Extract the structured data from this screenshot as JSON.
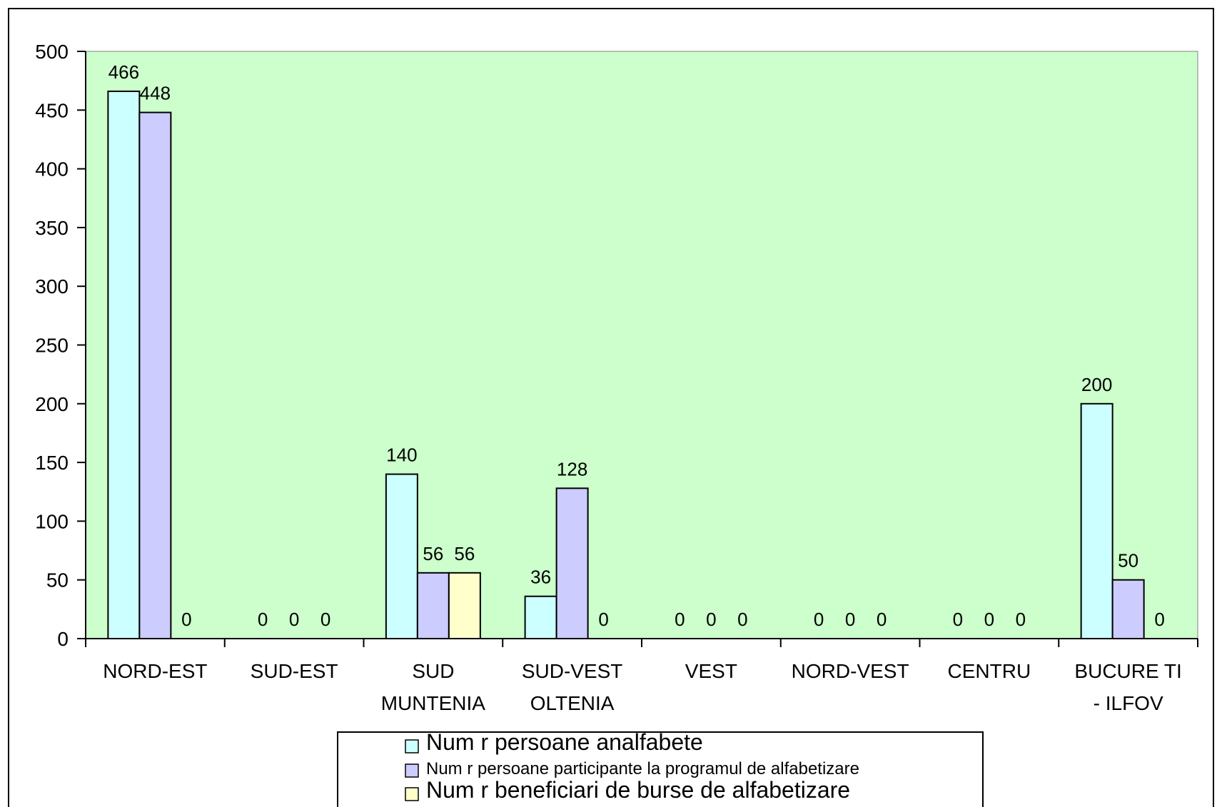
{
  "chart_data": {
    "type": "bar",
    "title": "",
    "xlabel": "",
    "ylabel": "",
    "ylim": [
      0,
      500
    ],
    "yticks": [
      0,
      50,
      100,
      150,
      200,
      250,
      300,
      350,
      400,
      450,
      500
    ],
    "grid": false,
    "legend_position": "bottom",
    "plot_background": "#ccffcc",
    "categories": [
      [
        "NORD-EST"
      ],
      [
        "SUD-EST"
      ],
      [
        "SUD",
        "MUNTENIA"
      ],
      [
        "SUD-VEST",
        "OLTENIA"
      ],
      [
        "VEST"
      ],
      [
        "NORD-VEST"
      ],
      [
        "CENTRU"
      ],
      [
        "BUCURE TI",
        "- ILFOV"
      ]
    ],
    "series": [
      {
        "name": "Num r persoane analfabete",
        "color": "#ccffff",
        "values": [
          466,
          0,
          140,
          36,
          0,
          0,
          0,
          200
        ]
      },
      {
        "name": "Num r persoane participante la programul de alfabetizare",
        "color": "#ccccff",
        "values": [
          448,
          0,
          56,
          128,
          0,
          0,
          0,
          50
        ]
      },
      {
        "name": "Num r beneficiari de burse de alfabetizare",
        "color": "#ffffcc",
        "values": [
          0,
          0,
          56,
          0,
          0,
          0,
          0,
          0
        ]
      }
    ]
  }
}
